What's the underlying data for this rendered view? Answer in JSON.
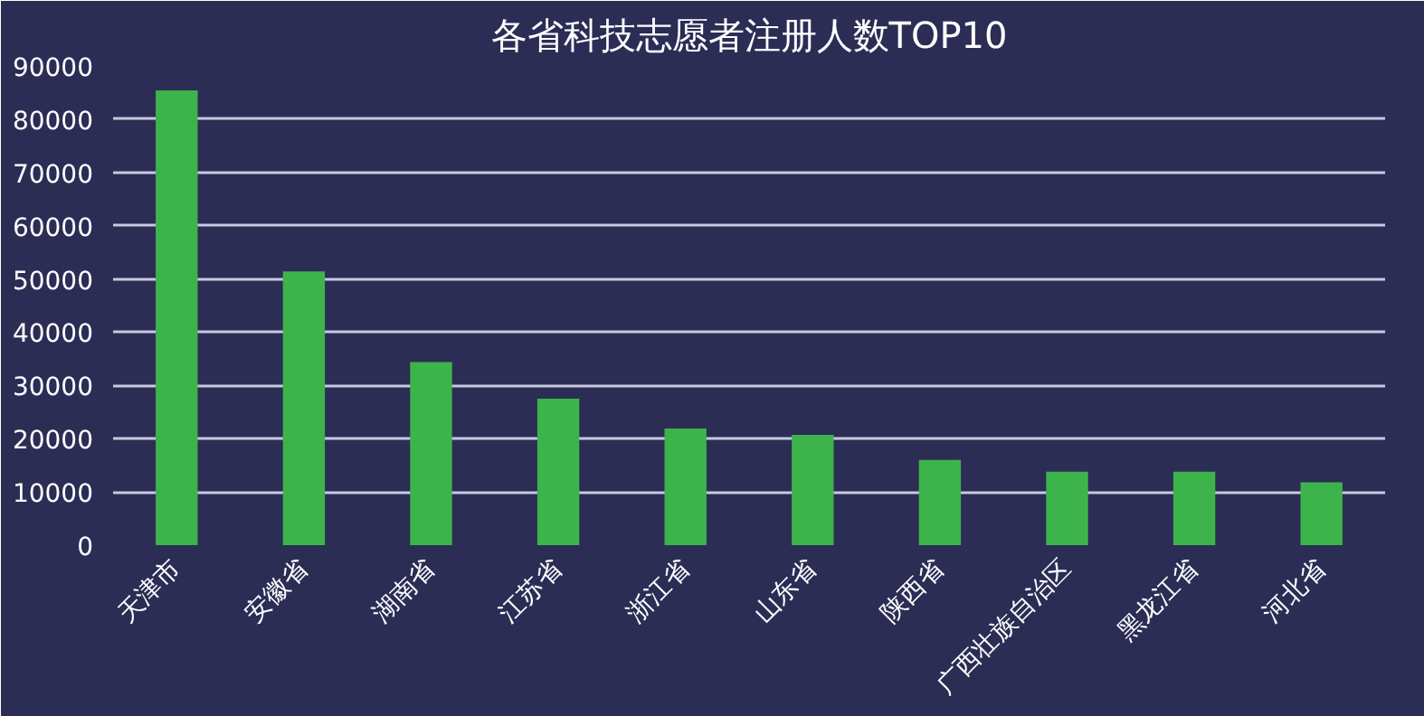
{
  "chart_data": {
    "type": "bar",
    "title": "各省科技志愿者注册人数TOP10",
    "categories": [
      "天津市",
      "安徽省",
      "湖南省",
      "江苏省",
      "浙江省",
      "山东省",
      "陕西省",
      "广西壮族自治区",
      "黑龙江省",
      "河北省"
    ],
    "values": [
      85400,
      51400,
      34400,
      27500,
      21900,
      20700,
      16000,
      13800,
      13800,
      11800
    ],
    "color": "#3cb44b",
    "ylim": [
      0,
      90000
    ],
    "yticks": [
      0,
      10000,
      20000,
      30000,
      40000,
      50000,
      60000,
      70000,
      80000,
      90000
    ],
    "grid": "y"
  }
}
